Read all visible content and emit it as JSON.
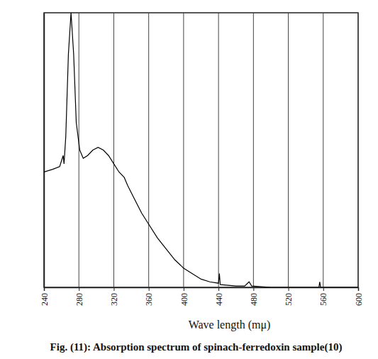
{
  "chart_data": {
    "type": "line",
    "title": "Fig. (11): Absorption spectrum of spinach-ferredoxin sample(10)",
    "x_label": "Wave length (mμ)",
    "x": [
      240,
      250,
      258,
      262,
      263,
      265,
      268,
      271,
      274,
      277,
      281,
      285,
      290,
      296,
      302,
      308,
      314,
      320,
      326,
      332,
      336,
      344,
      352,
      360,
      370,
      380,
      390,
      400,
      410,
      420,
      430,
      440,
      441,
      442,
      460,
      470,
      475,
      478,
      500,
      520,
      540,
      555,
      556,
      557,
      580,
      600
    ],
    "values": [
      0.42,
      0.43,
      0.44,
      0.48,
      0.45,
      0.55,
      0.85,
      1.0,
      0.85,
      0.6,
      0.5,
      0.47,
      0.48,
      0.5,
      0.51,
      0.5,
      0.48,
      0.45,
      0.42,
      0.4,
      0.37,
      0.32,
      0.27,
      0.23,
      0.18,
      0.14,
      0.1,
      0.07,
      0.05,
      0.03,
      0.02,
      0.015,
      0.05,
      0.01,
      0.005,
      0.005,
      0.02,
      0.005,
      0,
      0,
      0,
      0,
      0.02,
      0,
      0,
      0
    ],
    "color": "#000000",
    "xlim": [
      240,
      600
    ],
    "xticks": [
      240,
      280,
      320,
      360,
      400,
      440,
      480,
      520,
      560,
      600
    ],
    "ylim": [
      0,
      1
    ],
    "grid": true,
    "tick_labels": "x"
  }
}
